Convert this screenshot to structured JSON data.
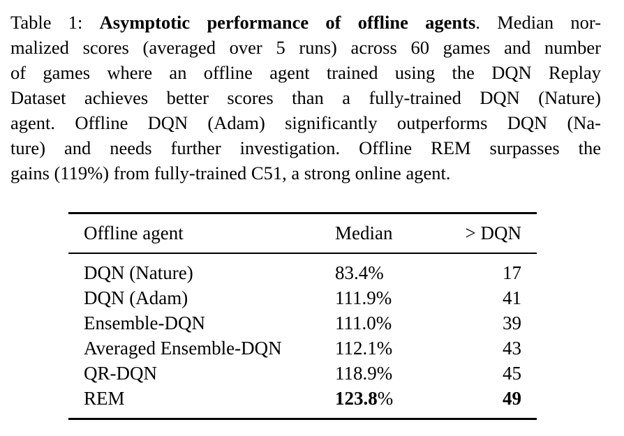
{
  "caption": {
    "label": "Table 1:",
    "title": "Asymptotic performance of offline agents",
    "lines": [
      "Median nor-",
      "malized scores (averaged over 5 runs) across 60 games and number",
      "of games where an offline agent trained using the DQN Replay",
      "Dataset achieves better scores than a fully-trained DQN (Nature)",
      "agent. Offline DQN (Adam) significantly outperforms DQN (Na-",
      "ture) and needs further investigation. Offline REM surpasses the",
      "gains (119%) from fully-trained C51, a strong online agent."
    ]
  },
  "table": {
    "headers": [
      "Offline agent",
      "Median",
      "> DQN"
    ],
    "rows": [
      {
        "agent": "DQN (Nature)",
        "median": "83.4%",
        "gt_dqn": "17",
        "bold": false
      },
      {
        "agent": "DQN (Adam)",
        "median": "111.9%",
        "gt_dqn": "41",
        "bold": false
      },
      {
        "agent": "Ensemble-DQN",
        "median": "111.0%",
        "gt_dqn": "39",
        "bold": false
      },
      {
        "agent": "Averaged Ensemble-DQN",
        "median": "112.1%",
        "gt_dqn": "43",
        "bold": false
      },
      {
        "agent": "QR-DQN",
        "median": "118.9%",
        "gt_dqn": "45",
        "bold": false
      },
      {
        "agent": "REM",
        "median_value": "123.8",
        "median_unit": "%",
        "gt_dqn": "49",
        "bold": true
      }
    ]
  }
}
